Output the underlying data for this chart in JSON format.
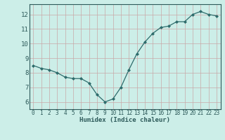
{
  "x": [
    0,
    1,
    2,
    3,
    4,
    5,
    6,
    7,
    8,
    9,
    10,
    11,
    12,
    13,
    14,
    15,
    16,
    17,
    18,
    19,
    20,
    21,
    22,
    23
  ],
  "y": [
    8.5,
    8.3,
    8.2,
    8.0,
    7.7,
    7.6,
    7.6,
    7.3,
    6.5,
    6.0,
    6.2,
    7.0,
    8.2,
    9.3,
    10.1,
    10.7,
    11.1,
    11.2,
    11.5,
    11.5,
    12.0,
    12.2,
    12.0,
    11.9
  ],
  "xlabel": "Humidex (Indice chaleur)",
  "line_color": "#2d6b6b",
  "marker_color": "#2d6b6b",
  "bg_color": "#cceee8",
  "grid_color": "#c8a8a8",
  "ylim": [
    5.5,
    12.7
  ],
  "xlim": [
    -0.5,
    23.5
  ],
  "yticks": [
    6,
    7,
    8,
    9,
    10,
    11,
    12
  ],
  "xticks": [
    0,
    1,
    2,
    3,
    4,
    5,
    6,
    7,
    8,
    9,
    10,
    11,
    12,
    13,
    14,
    15,
    16,
    17,
    18,
    19,
    20,
    21,
    22,
    23
  ],
  "xlabel_fontsize": 6.5,
  "tick_fontsize": 5.5,
  "ytick_fontsize": 6.5
}
